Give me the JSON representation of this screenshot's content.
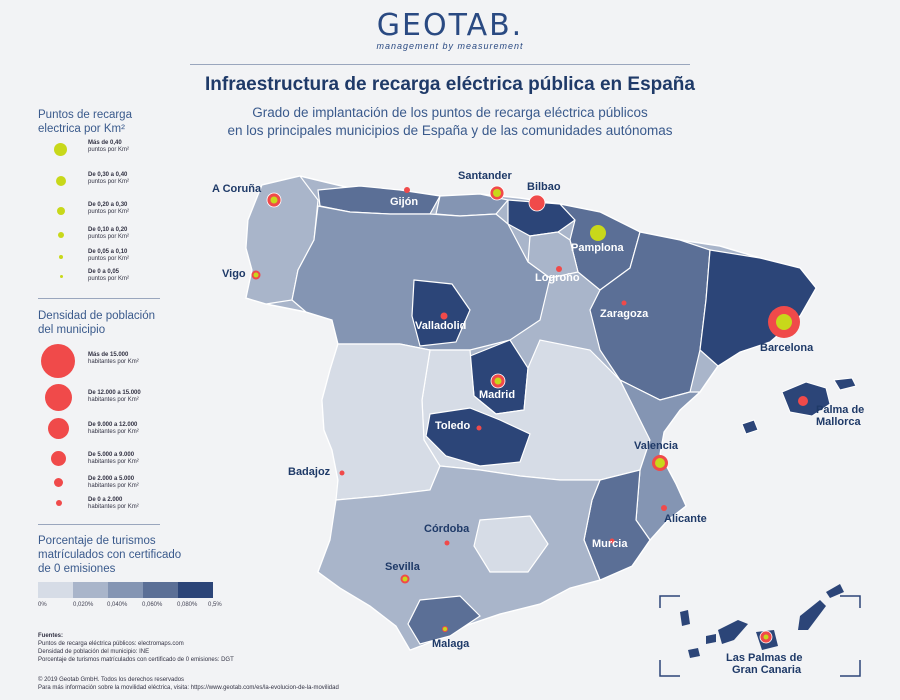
{
  "header": {
    "logo_name": "GEOTAB.",
    "logo_tagline": "management by measurement",
    "title": "Infraestructura de recarga eléctrica pública en España",
    "subtitle_line1": "Grado de implantación de los puntos de recarga eléctrica públicos",
    "subtitle_line2": "en los principales municipios de España y de las comunidades autónomas"
  },
  "legend_points": {
    "title_line1": "Puntos de recarga",
    "title_line2": "electrica por Km²",
    "items": [
      {
        "label": "Más de 0,40",
        "unit": "puntos por Km²"
      },
      {
        "label": "De 0,30 a 0,40",
        "unit": "puntos por Km²"
      },
      {
        "label": "De 0,20 a 0,30",
        "unit": "puntos por Km²"
      },
      {
        "label": "De 0,10 a 0,20",
        "unit": "puntos por Km²"
      },
      {
        "label": "De 0,05 a 0,10",
        "unit": "puntos por Km²"
      },
      {
        "label": "De 0 a 0,05",
        "unit": "puntos por Km²"
      }
    ]
  },
  "legend_density": {
    "title_line1": "Densidad de población",
    "title_line2": "del municipio",
    "items": [
      {
        "label": "Más de 15.000",
        "unit": "habitantes por Km²"
      },
      {
        "label": "De 12.000 a 15.000",
        "unit": "habitantes por Km²"
      },
      {
        "label": "De 9.000 a 12.000",
        "unit": "habitantes por Km²"
      },
      {
        "label": "De 5.000 a 9.000",
        "unit": "habitantes por Km²"
      },
      {
        "label": "De 2.000 a 5.000",
        "unit": "habitantes por Km²"
      },
      {
        "label": "De 0 a 2.000",
        "unit": "habitantes por Km²"
      }
    ]
  },
  "legend_share": {
    "title_line1": "Porcentaje de turismos",
    "title_line2": "matrículados con certificado",
    "title_line3": "de 0 emisiones",
    "ticks": [
      "0%",
      "0,020%",
      "0,040%",
      "0,060%",
      "0,080%",
      "0,5%"
    ],
    "colors": [
      "#d6dce6",
      "#a9b5ca",
      "#8495b3",
      "#5b6f96",
      "#2c4578"
    ]
  },
  "cities": [
    {
      "name": "A Coruña"
    },
    {
      "name": "Santander"
    },
    {
      "name": "Bilbao"
    },
    {
      "name": "Gijón"
    },
    {
      "name": "Pamplona"
    },
    {
      "name": "Vigo"
    },
    {
      "name": "Logroño"
    },
    {
      "name": "Zaragoza"
    },
    {
      "name": "Valladolid"
    },
    {
      "name": "Barcelona"
    },
    {
      "name": "Madrid"
    },
    {
      "name": "Palma de"
    },
    {
      "name": "Mallorca"
    },
    {
      "name": "Toledo"
    },
    {
      "name": "Valencia"
    },
    {
      "name": "Badajoz"
    },
    {
      "name": "Alicante"
    },
    {
      "name": "Córdoba"
    },
    {
      "name": "Murcia"
    },
    {
      "name": "Sevilla"
    },
    {
      "name": "Malaga"
    },
    {
      "name": "Las Palmas de"
    },
    {
      "name": "Gran Canaria"
    }
  ],
  "sources": {
    "title": "Fuentes:",
    "line1": "Puntos de recarga eléctrica públicos: electromaps.com",
    "line2": "Densidad de población del municipio: INE",
    "line3": "Porcentaje de turismos matrículados con certificado de 0 emisiones: DGT"
  },
  "footer": {
    "copyright": "© 2019 Geotab GmbH. Todos los derechos reservados",
    "more_info": "Para más información sobre la movilidad eléctrica, visita: https://www.geotab.com/es/la-evolucion-de-la-movilidad"
  }
}
